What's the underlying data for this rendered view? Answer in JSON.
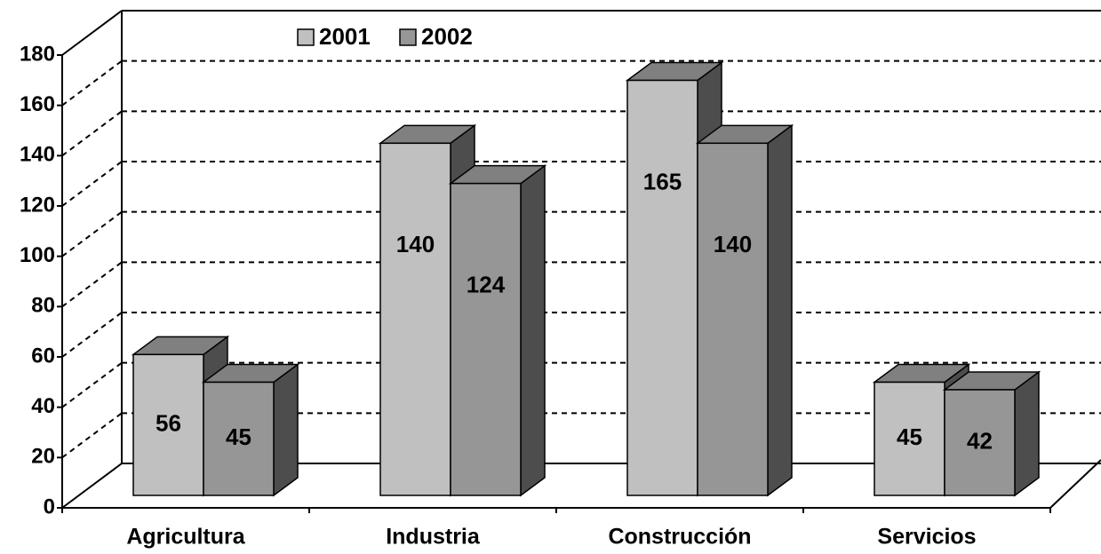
{
  "chart_data": {
    "type": "bar3d",
    "categories": [
      "Agricultura",
      "Industria",
      "Construcción",
      "Servicios"
    ],
    "series": [
      {
        "name": "2001",
        "color": "#c0c0c0",
        "values": [
          56,
          140,
          165,
          45
        ]
      },
      {
        "name": "2002",
        "color": "#969696",
        "values": [
          45,
          124,
          140,
          42
        ]
      }
    ],
    "ylim": [
      0,
      180
    ],
    "yticks": [
      0,
      20,
      40,
      60,
      80,
      100,
      120,
      140,
      160,
      180
    ],
    "grid": true
  }
}
